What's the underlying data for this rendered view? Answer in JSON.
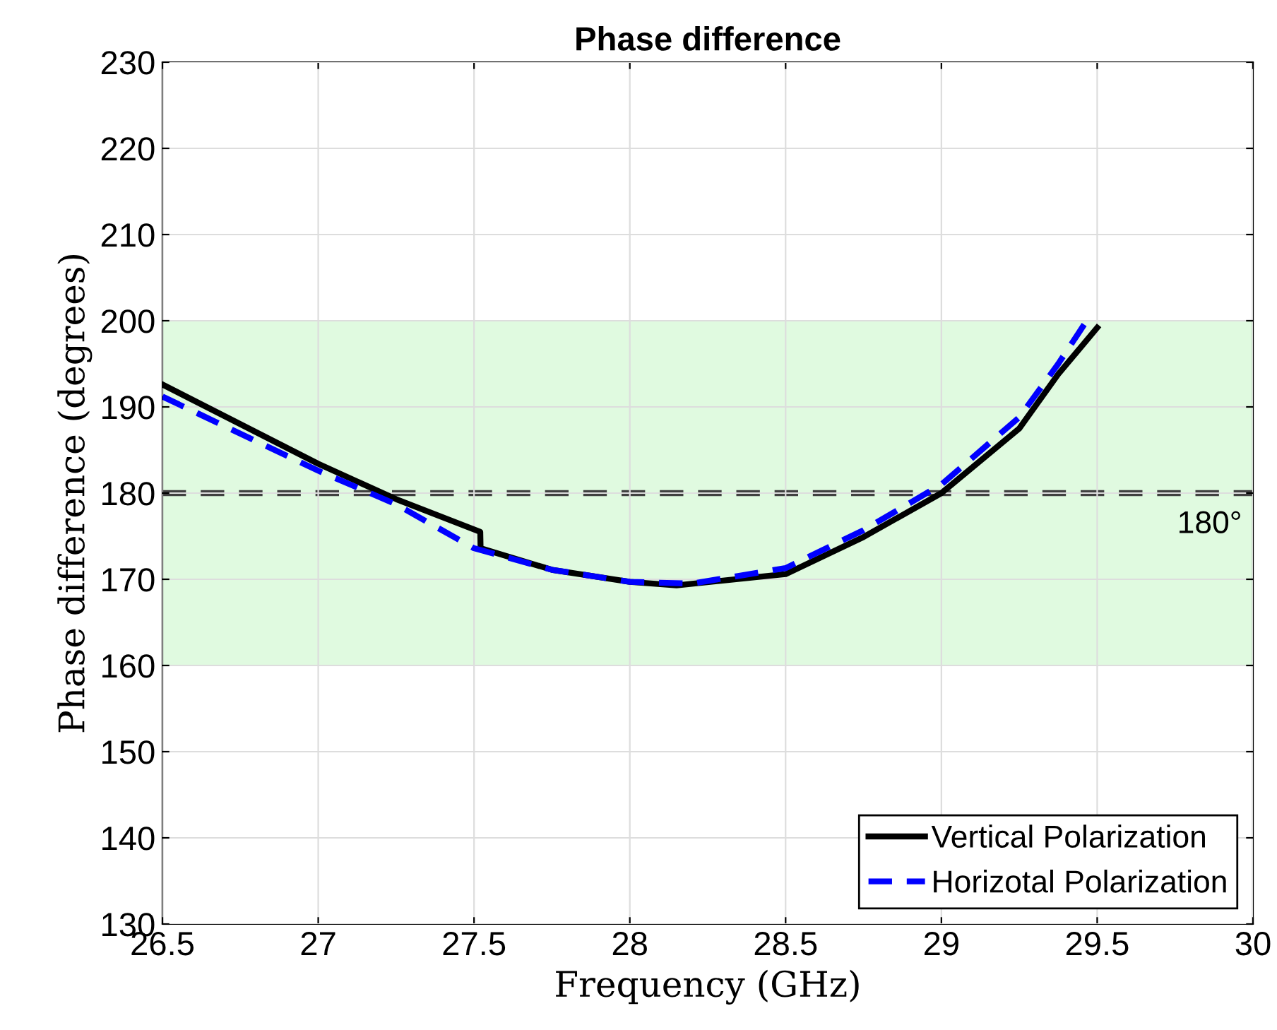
{
  "chart_data": {
    "type": "line",
    "title": "Phase difference",
    "xlabel": "Frequency (GHz)",
    "ylabel": "Phase difference (degrees)",
    "xlim": [
      26.5,
      30
    ],
    "xticks": [
      26.5,
      27,
      27.5,
      28,
      28.5,
      29,
      29.5,
      30
    ],
    "ylim": [
      130,
      230
    ],
    "yticks": [
      130,
      140,
      150,
      160,
      170,
      180,
      190,
      200,
      210,
      220,
      230
    ],
    "grid": true,
    "legend": "bottom right",
    "series": [
      {
        "name": "Vertical Polarization",
        "color": "#000000",
        "line_style": "solid",
        "x": [
          26.5,
          27.0,
          27.25,
          27.52,
          27.521,
          27.75,
          28.0,
          28.15,
          28.5,
          28.75,
          29.0,
          29.25,
          29.375,
          29.5
        ],
        "values": [
          192.6,
          183.4,
          179.3,
          175.5,
          173.6,
          171.1,
          169.7,
          169.3,
          170.6,
          174.9,
          180,
          187.5,
          193.8,
          199.2
        ]
      },
      {
        "name": "Horizotal Polarization",
        "color": "#0000ff",
        "line_style": "dashed",
        "x": [
          26.5,
          27.0,
          27.25,
          27.5,
          27.75,
          28.0,
          28.2,
          28.5,
          28.75,
          29.0,
          29.25,
          29.375,
          29.47
        ],
        "values": [
          191.2,
          182.6,
          178.7,
          173.6,
          171.1,
          169.7,
          169.5,
          171.3,
          175.7,
          181,
          188.8,
          195,
          200.2
        ]
      }
    ],
    "bands": [
      {
        "axis": "y",
        "from": 160,
        "to": 200,
        "color": "#e0fae0"
      }
    ],
    "ref_lines": [
      {
        "axis": "y",
        "value": 180,
        "label": "180°",
        "color": "#404040",
        "line_style": "dashed"
      }
    ]
  }
}
